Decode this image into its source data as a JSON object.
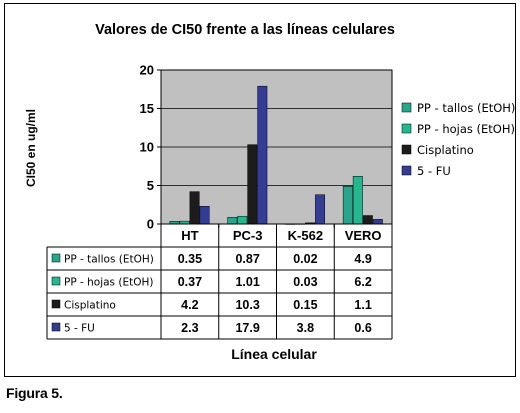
{
  "chart_data": {
    "type": "bar",
    "title": "Valores de CI50 frente a las líneas celulares",
    "xlabel": "Línea celular",
    "ylabel": "CI50 en ug/ml",
    "ylim": [
      0,
      20
    ],
    "yticks": [
      "0",
      "5",
      "10",
      "15",
      "20"
    ],
    "grid": true,
    "legend_position": "right",
    "categories": [
      "HT",
      "PC-3",
      "K-562",
      "VERO"
    ],
    "series": [
      {
        "name": "PP - tallos (EtOH)",
        "color": "#26a68b",
        "values": [
          0.35,
          0.87,
          0.02,
          4.9
        ],
        "labels": [
          "0.35",
          "0.87",
          "0.02",
          "4.9"
        ]
      },
      {
        "name": "PP - hojas (EtOH)",
        "color": "#23b88f",
        "values": [
          0.37,
          1.01,
          0.03,
          6.2
        ],
        "labels": [
          "0.37",
          "1.01",
          "0.03",
          "6.2"
        ]
      },
      {
        "name": "Cisplatino",
        "color": "#1c1c1c",
        "values": [
          4.2,
          10.3,
          0.15,
          1.1
        ],
        "labels": [
          "4.2",
          "10.3",
          "0.15",
          "1.1"
        ]
      },
      {
        "name": "5 - FU",
        "color": "#343c94",
        "values": [
          2.3,
          17.9,
          3.8,
          0.6
        ],
        "labels": [
          "2.3",
          "17.9",
          "3.8",
          "0.6"
        ]
      }
    ],
    "colors": {
      "plot_background": "#c0c0c0",
      "frame": "#000000"
    }
  },
  "caption": "Figura 5."
}
